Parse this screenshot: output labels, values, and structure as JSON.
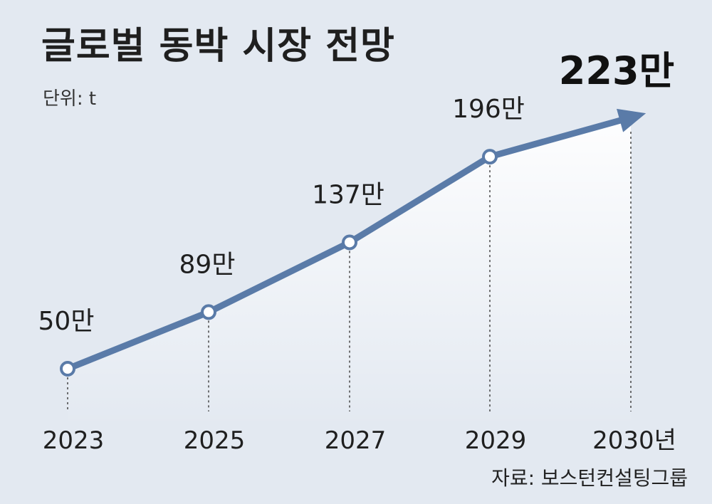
{
  "chart_data": {
    "type": "line",
    "title": "글로벌 동박 시장 전망",
    "unit": "단위: t",
    "source": "자료: 보스턴컨설팅그룹",
    "x": [
      "2023",
      "2025",
      "2027",
      "2029",
      "2030년"
    ],
    "values": [
      50,
      89,
      137,
      196,
      223
    ],
    "value_labels": [
      "50만",
      "89만",
      "137만",
      "196만",
      "223만"
    ],
    "last_point_arrow": true,
    "line_color": "#5a7ba8",
    "marker_fill": "#ffffff"
  }
}
